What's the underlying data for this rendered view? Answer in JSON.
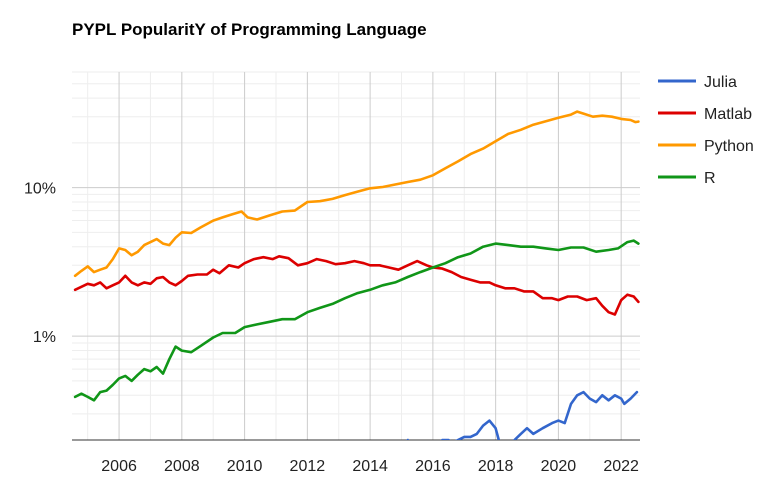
{
  "chart_data": {
    "type": "line",
    "title": "PYPL PopularitY of Programming Language",
    "xlabel": "",
    "ylabel": "",
    "yscale": "log",
    "ylim": [
      0.2,
      60
    ],
    "xlim": [
      2004.5,
      2022.6
    ],
    "grid": true,
    "legend": "right",
    "x_ticks": [
      2006,
      2008,
      2010,
      2012,
      2014,
      2016,
      2018,
      2020,
      2022
    ],
    "x_tick_labels": [
      "2006",
      "2008",
      "2010",
      "2012",
      "2014",
      "2016",
      "2018",
      "2020",
      "2022"
    ],
    "y_ticks": [
      1,
      10
    ],
    "y_tick_labels": [
      "1%",
      "10%"
    ],
    "series": [
      {
        "name": "Julia",
        "color": "#3366cc",
        "points": [
          [
            2015.2,
            0.2
          ],
          [
            2015.25,
            0.19
          ],
          [
            2016.2,
            0.19
          ],
          [
            2016.3,
            0.2
          ],
          [
            2016.5,
            0.2
          ],
          [
            2016.6,
            0.19
          ],
          [
            2016.8,
            0.2
          ],
          [
            2017.0,
            0.21
          ],
          [
            2017.2,
            0.21
          ],
          [
            2017.4,
            0.22
          ],
          [
            2017.6,
            0.25
          ],
          [
            2017.8,
            0.27
          ],
          [
            2018.0,
            0.24
          ],
          [
            2018.1,
            0.2
          ],
          [
            2018.2,
            0.18
          ],
          [
            2018.5,
            0.18
          ],
          [
            2018.6,
            0.2
          ],
          [
            2018.8,
            0.22
          ],
          [
            2019.0,
            0.24
          ],
          [
            2019.2,
            0.22
          ],
          [
            2019.5,
            0.24
          ],
          [
            2019.8,
            0.26
          ],
          [
            2020.0,
            0.27
          ],
          [
            2020.2,
            0.26
          ],
          [
            2020.4,
            0.35
          ],
          [
            2020.6,
            0.4
          ],
          [
            2020.8,
            0.42
          ],
          [
            2021.0,
            0.38
          ],
          [
            2021.2,
            0.36
          ],
          [
            2021.4,
            0.4
          ],
          [
            2021.6,
            0.37
          ],
          [
            2021.8,
            0.4
          ],
          [
            2022.0,
            0.38
          ],
          [
            2022.1,
            0.35
          ],
          [
            2022.3,
            0.38
          ],
          [
            2022.5,
            0.42
          ]
        ]
      },
      {
        "name": "Matlab",
        "color": "#dc0000",
        "points": [
          [
            2004.6,
            2.05
          ],
          [
            2004.8,
            2.15
          ],
          [
            2005.0,
            2.25
          ],
          [
            2005.2,
            2.2
          ],
          [
            2005.4,
            2.3
          ],
          [
            2005.6,
            2.1
          ],
          [
            2005.8,
            2.2
          ],
          [
            2006.0,
            2.3
          ],
          [
            2006.2,
            2.55
          ],
          [
            2006.4,
            2.3
          ],
          [
            2006.6,
            2.2
          ],
          [
            2006.8,
            2.3
          ],
          [
            2007.0,
            2.25
          ],
          [
            2007.2,
            2.45
          ],
          [
            2007.4,
            2.5
          ],
          [
            2007.6,
            2.3
          ],
          [
            2007.8,
            2.2
          ],
          [
            2008.0,
            2.35
          ],
          [
            2008.2,
            2.55
          ],
          [
            2008.5,
            2.6
          ],
          [
            2008.8,
            2.6
          ],
          [
            2009.0,
            2.8
          ],
          [
            2009.2,
            2.65
          ],
          [
            2009.5,
            3.0
          ],
          [
            2009.8,
            2.9
          ],
          [
            2010.0,
            3.1
          ],
          [
            2010.3,
            3.3
          ],
          [
            2010.6,
            3.4
          ],
          [
            2010.9,
            3.3
          ],
          [
            2011.1,
            3.45
          ],
          [
            2011.4,
            3.35
          ],
          [
            2011.7,
            3.0
          ],
          [
            2012.0,
            3.1
          ],
          [
            2012.3,
            3.3
          ],
          [
            2012.6,
            3.2
          ],
          [
            2012.9,
            3.05
          ],
          [
            2013.2,
            3.1
          ],
          [
            2013.5,
            3.2
          ],
          [
            2013.8,
            3.1
          ],
          [
            2014.0,
            3.0
          ],
          [
            2014.3,
            3.0
          ],
          [
            2014.6,
            2.9
          ],
          [
            2014.9,
            2.8
          ],
          [
            2015.2,
            3.0
          ],
          [
            2015.5,
            3.2
          ],
          [
            2015.8,
            3.0
          ],
          [
            2016.0,
            2.9
          ],
          [
            2016.3,
            2.85
          ],
          [
            2016.6,
            2.7
          ],
          [
            2016.9,
            2.5
          ],
          [
            2017.2,
            2.4
          ],
          [
            2017.5,
            2.3
          ],
          [
            2017.8,
            2.3
          ],
          [
            2018.0,
            2.2
          ],
          [
            2018.3,
            2.1
          ],
          [
            2018.6,
            2.1
          ],
          [
            2018.9,
            2.0
          ],
          [
            2019.2,
            2.0
          ],
          [
            2019.5,
            1.8
          ],
          [
            2019.8,
            1.8
          ],
          [
            2020.0,
            1.75
          ],
          [
            2020.3,
            1.85
          ],
          [
            2020.6,
            1.85
          ],
          [
            2020.9,
            1.75
          ],
          [
            2021.2,
            1.8
          ],
          [
            2021.4,
            1.6
          ],
          [
            2021.6,
            1.45
          ],
          [
            2021.8,
            1.4
          ],
          [
            2022.0,
            1.75
          ],
          [
            2022.2,
            1.9
          ],
          [
            2022.4,
            1.85
          ],
          [
            2022.55,
            1.7
          ]
        ]
      },
      {
        "name": "Python",
        "color": "#ff9900",
        "points": [
          [
            2004.6,
            2.55
          ],
          [
            2004.8,
            2.75
          ],
          [
            2005.0,
            2.95
          ],
          [
            2005.2,
            2.7
          ],
          [
            2005.4,
            2.8
          ],
          [
            2005.6,
            2.9
          ],
          [
            2005.8,
            3.3
          ],
          [
            2006.0,
            3.9
          ],
          [
            2006.2,
            3.8
          ],
          [
            2006.4,
            3.5
          ],
          [
            2006.6,
            3.7
          ],
          [
            2006.8,
            4.1
          ],
          [
            2007.0,
            4.3
          ],
          [
            2007.2,
            4.5
          ],
          [
            2007.4,
            4.2
          ],
          [
            2007.6,
            4.1
          ],
          [
            2007.8,
            4.6
          ],
          [
            2008.0,
            5.0
          ],
          [
            2008.3,
            4.95
          ],
          [
            2008.6,
            5.4
          ],
          [
            2009.0,
            6.0
          ],
          [
            2009.3,
            6.3
          ],
          [
            2009.6,
            6.6
          ],
          [
            2009.9,
            6.9
          ],
          [
            2010.1,
            6.3
          ],
          [
            2010.4,
            6.1
          ],
          [
            2010.8,
            6.5
          ],
          [
            2011.2,
            6.9
          ],
          [
            2011.6,
            7.0
          ],
          [
            2012.0,
            8.0
          ],
          [
            2012.4,
            8.1
          ],
          [
            2012.8,
            8.4
          ],
          [
            2013.2,
            8.9
          ],
          [
            2013.6,
            9.4
          ],
          [
            2014.0,
            9.9
          ],
          [
            2014.4,
            10.1
          ],
          [
            2014.8,
            10.5
          ],
          [
            2015.2,
            10.9
          ],
          [
            2015.6,
            11.3
          ],
          [
            2016.0,
            12.1
          ],
          [
            2016.4,
            13.5
          ],
          [
            2016.8,
            15.0
          ],
          [
            2017.2,
            16.8
          ],
          [
            2017.6,
            18.3
          ],
          [
            2018.0,
            20.5
          ],
          [
            2018.4,
            23.0
          ],
          [
            2018.8,
            24.5
          ],
          [
            2019.2,
            26.5
          ],
          [
            2019.6,
            28.0
          ],
          [
            2020.0,
            29.5
          ],
          [
            2020.4,
            31.0
          ],
          [
            2020.6,
            32.5
          ],
          [
            2020.8,
            31.5
          ],
          [
            2021.1,
            30.0
          ],
          [
            2021.4,
            30.5
          ],
          [
            2021.7,
            30.0
          ],
          [
            2022.0,
            29.0
          ],
          [
            2022.3,
            28.5
          ],
          [
            2022.45,
            27.6
          ],
          [
            2022.55,
            27.8
          ]
        ]
      },
      {
        "name": "R",
        "color": "#109618",
        "points": [
          [
            2004.6,
            0.39
          ],
          [
            2004.8,
            0.41
          ],
          [
            2005.0,
            0.39
          ],
          [
            2005.2,
            0.37
          ],
          [
            2005.4,
            0.42
          ],
          [
            2005.6,
            0.43
          ],
          [
            2005.8,
            0.47
          ],
          [
            2006.0,
            0.52
          ],
          [
            2006.2,
            0.54
          ],
          [
            2006.4,
            0.5
          ],
          [
            2006.6,
            0.55
          ],
          [
            2006.8,
            0.6
          ],
          [
            2007.0,
            0.58
          ],
          [
            2007.2,
            0.62
          ],
          [
            2007.4,
            0.56
          ],
          [
            2007.6,
            0.7
          ],
          [
            2007.8,
            0.85
          ],
          [
            2008.0,
            0.8
          ],
          [
            2008.3,
            0.78
          ],
          [
            2008.6,
            0.86
          ],
          [
            2009.0,
            0.98
          ],
          [
            2009.3,
            1.05
          ],
          [
            2009.7,
            1.05
          ],
          [
            2010.0,
            1.15
          ],
          [
            2010.4,
            1.2
          ],
          [
            2010.8,
            1.25
          ],
          [
            2011.2,
            1.3
          ],
          [
            2011.6,
            1.3
          ],
          [
            2012.0,
            1.45
          ],
          [
            2012.4,
            1.55
          ],
          [
            2012.8,
            1.65
          ],
          [
            2013.2,
            1.8
          ],
          [
            2013.6,
            1.95
          ],
          [
            2014.0,
            2.05
          ],
          [
            2014.4,
            2.2
          ],
          [
            2014.8,
            2.3
          ],
          [
            2015.2,
            2.5
          ],
          [
            2015.6,
            2.7
          ],
          [
            2016.0,
            2.9
          ],
          [
            2016.4,
            3.1
          ],
          [
            2016.8,
            3.4
          ],
          [
            2017.2,
            3.6
          ],
          [
            2017.6,
            4.0
          ],
          [
            2018.0,
            4.2
          ],
          [
            2018.4,
            4.1
          ],
          [
            2018.8,
            4.0
          ],
          [
            2019.2,
            4.0
          ],
          [
            2019.6,
            3.9
          ],
          [
            2020.0,
            3.8
          ],
          [
            2020.4,
            3.95
          ],
          [
            2020.8,
            3.95
          ],
          [
            2021.2,
            3.7
          ],
          [
            2021.6,
            3.8
          ],
          [
            2021.9,
            3.9
          ],
          [
            2022.2,
            4.3
          ],
          [
            2022.4,
            4.4
          ],
          [
            2022.55,
            4.2
          ]
        ]
      }
    ]
  }
}
